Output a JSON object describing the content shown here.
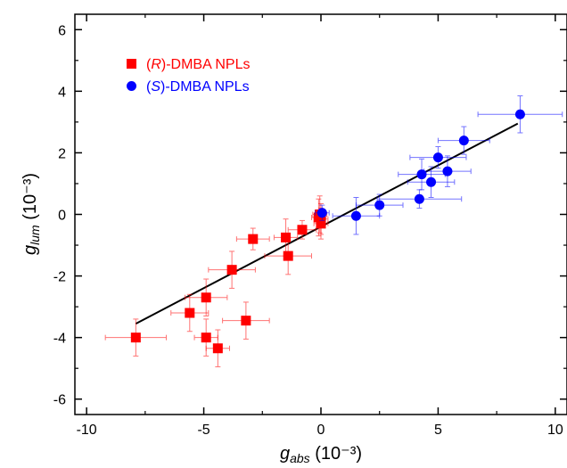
{
  "chart_data": {
    "type": "scatter",
    "xlabel": {
      "main": "g",
      "sub": "abs",
      "unit": " (10⁻³)"
    },
    "ylabel": {
      "main": "g",
      "sub": "lum",
      "unit": " (10⁻³)"
    },
    "xlim": [
      -10.5,
      10.5
    ],
    "ylim": [
      -6.5,
      6.5
    ],
    "xticks": [
      -10,
      -5,
      0,
      5,
      10
    ],
    "yticks": [
      -6,
      -4,
      -2,
      0,
      2,
      4,
      6
    ],
    "xtick_labels": [
      "-10",
      "-5",
      "0",
      "5",
      "10"
    ],
    "ytick_labels": [
      "-6",
      "-4",
      "-2",
      "0",
      "2",
      "4",
      "6"
    ],
    "minor_xticks": [
      -7.5,
      -2.5,
      2.5,
      7.5
    ],
    "minor_yticks": [
      -5,
      -3,
      -1,
      1,
      3,
      5
    ],
    "grid": false,
    "legend_position": "top-left",
    "series": [
      {
        "name": "(R)-DMBA NPLs",
        "name_prefix": "(",
        "name_italic": "R",
        "name_suffix": ")-DMBA NPLs",
        "color": "#ff0000",
        "marker": "square",
        "points": [
          {
            "x": -7.9,
            "y": -4.0,
            "xerr": 1.3,
            "yerr": 0.6
          },
          {
            "x": -5.6,
            "y": -3.2,
            "xerr": 0.8,
            "yerr": 0.6
          },
          {
            "x": -4.9,
            "y": -2.7,
            "xerr": 0.9,
            "yerr": 0.6
          },
          {
            "x": -4.9,
            "y": -4.0,
            "xerr": 0.5,
            "yerr": 0.6
          },
          {
            "x": -4.4,
            "y": -4.35,
            "xerr": 0.5,
            "yerr": 0.6
          },
          {
            "x": -3.8,
            "y": -1.8,
            "xerr": 1.0,
            "yerr": 0.6
          },
          {
            "x": -3.2,
            "y": -3.45,
            "xerr": 1.0,
            "yerr": 0.6
          },
          {
            "x": -2.9,
            "y": -0.8,
            "xerr": 0.7,
            "yerr": 0.35
          },
          {
            "x": -1.5,
            "y": -0.75,
            "xerr": 0.5,
            "yerr": 0.6
          },
          {
            "x": -1.4,
            "y": -1.35,
            "xerr": 1.0,
            "yerr": 0.6
          },
          {
            "x": -0.8,
            "y": -0.5,
            "xerr": 0.6,
            "yerr": 0.3
          },
          {
            "x": -0.1,
            "y": -0.1,
            "xerr": 0.3,
            "yerr": 0.6
          },
          {
            "x": -0.05,
            "y": 0.0,
            "xerr": 0.3,
            "yerr": 0.6
          },
          {
            "x": 0.0,
            "y": -0.3,
            "xerr": 0.3,
            "yerr": 0.5
          },
          {
            "x": 0.0,
            "y": -0.15,
            "xerr": 0.3,
            "yerr": 0.5
          }
        ]
      },
      {
        "name": "(S)-DMBA NPLs",
        "name_prefix": "(",
        "name_italic": "S",
        "name_suffix": ")-DMBA NPLs",
        "color": "#0000ff",
        "marker": "circle",
        "points": [
          {
            "x": 0.05,
            "y": 0.05,
            "xerr": 0.3,
            "yerr": 0.25
          },
          {
            "x": 1.5,
            "y": -0.05,
            "xerr": 1.0,
            "yerr": 0.6
          },
          {
            "x": 2.5,
            "y": 0.3,
            "xerr": 1.0,
            "yerr": 0.35
          },
          {
            "x": 4.2,
            "y": 0.5,
            "xerr": 1.8,
            "yerr": 0.3
          },
          {
            "x": 4.3,
            "y": 1.3,
            "xerr": 1.0,
            "yerr": 0.5
          },
          {
            "x": 4.7,
            "y": 1.05,
            "xerr": 1.0,
            "yerr": 0.5
          },
          {
            "x": 5.0,
            "y": 1.85,
            "xerr": 1.2,
            "yerr": 0.35
          },
          {
            "x": 5.4,
            "y": 1.4,
            "xerr": 1.0,
            "yerr": 0.5
          },
          {
            "x": 6.1,
            "y": 2.4,
            "xerr": 1.1,
            "yerr": 0.45
          },
          {
            "x": 8.5,
            "y": 3.25,
            "xerr": 1.8,
            "yerr": 0.6
          }
        ]
      }
    ],
    "fit_line": {
      "color": "#000000",
      "x": [
        -7.9,
        8.4
      ],
      "y": [
        -3.55,
        2.95
      ]
    }
  }
}
